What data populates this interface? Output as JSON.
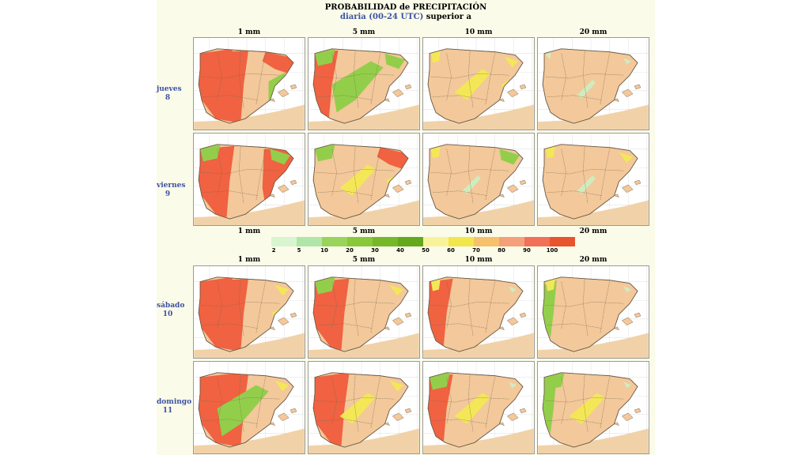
{
  "title": {
    "line1": "PROBABILIDAD de PRECIPITACIÓN",
    "line2_blue": "diaria (00-24 UTC)",
    "line2_black": "superior a"
  },
  "thresholds": [
    "1 mm",
    "5 mm",
    "10 mm",
    "20 mm"
  ],
  "days": [
    {
      "name": "jueves",
      "num": "8"
    },
    {
      "name": "viernes",
      "num": "9"
    },
    {
      "name": "sábado",
      "num": "10"
    },
    {
      "name": "domingo",
      "num": "11"
    }
  ],
  "legend": {
    "values": [
      "2",
      "5",
      "10",
      "20",
      "30",
      "40",
      "50",
      "60",
      "70",
      "80",
      "90",
      "100"
    ],
    "colors": [
      "#d8f5d0",
      "#b0e6a8",
      "#9ad45a",
      "#88c83a",
      "#76b82a",
      "#64a81e",
      "#f8f39a",
      "#f1e64a",
      "#f7c06a",
      "#f5a07a",
      "#f07058",
      "#e8542e"
    ]
  },
  "colors": {
    "land": "#f3c89a",
    "sea": "#ffffff",
    "africa": "#f1d2a8",
    "high": "#f05a3a",
    "mid": "#8bcf45",
    "low": "#ccefc4",
    "yellow": "#f3ea52"
  },
  "map_overlays": [
    [
      "w5",
      "nw3",
      "ne3",
      "e2"
    ],
    [
      "w3",
      "c2",
      "nw2",
      "ne2"
    ],
    [
      "nw1",
      "c1",
      "ne1",
      "e1"
    ],
    [
      "ne0",
      "c0",
      "nw0",
      "e0"
    ],
    [
      "w4",
      "e4",
      "ne2",
      "nw2"
    ],
    [
      "nw2",
      "ne3",
      "c1",
      "e1"
    ],
    [
      "nw1",
      "ne2",
      "c0",
      "e0"
    ],
    [
      "nw1",
      "ne1",
      "c0",
      "e0"
    ],
    [
      "w5",
      "nw3",
      "ne1",
      "e1"
    ],
    [
      "w4",
      "nw2",
      "ne1",
      "e0"
    ],
    [
      "w3",
      "nw1",
      "ne0",
      "e0"
    ],
    [
      "w2",
      "nw1",
      "ne0",
      "e0"
    ],
    [
      "w5",
      "nw4",
      "c2",
      "ne1"
    ],
    [
      "w4",
      "nw3",
      "c1",
      "ne1"
    ],
    [
      "w3",
      "nw2",
      "c1",
      "ne0"
    ],
    [
      "w2",
      "nw2",
      "c1",
      "ne0"
    ]
  ]
}
